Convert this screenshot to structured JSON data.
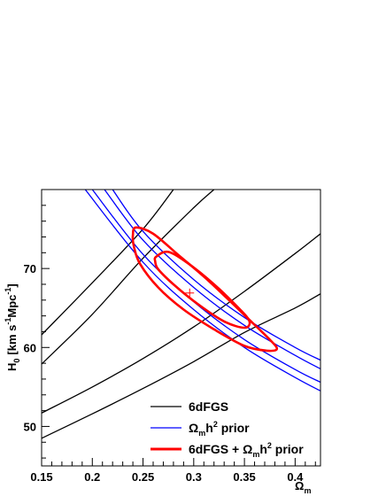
{
  "chart_data": {
    "type": "line",
    "title": "",
    "xlabel": {
      "base": "Ω",
      "sub": "m"
    },
    "ylabel": {
      "base": "H",
      "sub": "0",
      "unit": "[km s",
      "sup1": "-1",
      "unit2": "Mpc",
      "sup2": "-1",
      "close": "]"
    },
    "xlim": [
      0.15,
      0.425
    ],
    "ylim": [
      45,
      80
    ],
    "xticks": [
      "0.15",
      "0.2",
      "0.25",
      "0.3",
      "0.35",
      "0.4"
    ],
    "xtick_values": [
      0.15,
      0.2,
      0.25,
      0.3,
      0.35,
      0.4
    ],
    "yticks": [
      "50",
      "60",
      "70"
    ],
    "ytick_values": [
      50,
      60,
      70
    ],
    "grid": false,
    "legend_position": "bottom-right",
    "legend": [
      {
        "text": "6dFGS",
        "color": "#000000"
      },
      {
        "base": "Ω",
        "sub": "m",
        "rest": "h",
        "sup": "2",
        "tail": " prior",
        "color": "#0000ff"
      },
      {
        "prefix": "6dFGS + ",
        "base": "Ω",
        "sub": "m",
        "rest": "h",
        "sup": "2",
        "tail": " prior",
        "color": "#ff0000"
      }
    ],
    "best_fit": {
      "x": 0.296,
      "y": 66.9,
      "color": "#ff0000"
    },
    "series": [
      {
        "group": "6dFGS",
        "color": "#000000",
        "points": [
          [
            0.15,
            61.6
          ],
          [
            0.2,
            68.2
          ],
          [
            0.25,
            75.0
          ],
          [
            0.28,
            80.0
          ]
        ]
      },
      {
        "group": "6dFGS",
        "color": "#000000",
        "points": [
          [
            0.15,
            57.9
          ],
          [
            0.2,
            64.2
          ],
          [
            0.25,
            71.3
          ],
          [
            0.3,
            77.7
          ],
          [
            0.32,
            80.0
          ]
        ]
      },
      {
        "group": "6dFGS",
        "color": "#000000",
        "points": [
          [
            0.15,
            51.7
          ],
          [
            0.2,
            55.0
          ],
          [
            0.25,
            58.6
          ],
          [
            0.3,
            62.6
          ],
          [
            0.35,
            67.1
          ],
          [
            0.4,
            71.9
          ],
          [
            0.425,
            74.4
          ]
        ]
      },
      {
        "group": "6dFGS",
        "color": "#000000",
        "points": [
          [
            0.15,
            48.5
          ],
          [
            0.2,
            51.6
          ],
          [
            0.25,
            54.8
          ],
          [
            0.3,
            58.2
          ],
          [
            0.35,
            61.9
          ],
          [
            0.4,
            65.0
          ],
          [
            0.425,
            66.8
          ]
        ]
      },
      {
        "group": "prior",
        "color": "#0000ff",
        "points": [
          [
            0.193,
            80.0
          ],
          [
            0.25,
            70.8
          ],
          [
            0.3,
            64.8
          ],
          [
            0.35,
            60.0
          ],
          [
            0.4,
            56.2
          ],
          [
            0.425,
            54.5
          ]
        ]
      },
      {
        "group": "prior",
        "color": "#0000ff",
        "points": [
          [
            0.2,
            80.0
          ],
          [
            0.25,
            71.8
          ],
          [
            0.3,
            65.8
          ],
          [
            0.35,
            61.0
          ],
          [
            0.4,
            57.2
          ],
          [
            0.425,
            55.6
          ]
        ]
      },
      {
        "group": "prior",
        "color": "#0000ff",
        "points": [
          [
            0.212,
            80.0
          ],
          [
            0.25,
            73.6
          ],
          [
            0.3,
            67.6
          ],
          [
            0.35,
            62.8
          ],
          [
            0.4,
            59.0
          ],
          [
            0.425,
            57.3
          ]
        ]
      },
      {
        "group": "prior",
        "color": "#0000ff",
        "points": [
          [
            0.22,
            80.0
          ],
          [
            0.25,
            74.7
          ],
          [
            0.3,
            68.6
          ],
          [
            0.35,
            63.8
          ],
          [
            0.4,
            60.0
          ],
          [
            0.425,
            58.4
          ]
        ]
      }
    ],
    "contours": [
      {
        "level": "1-sigma",
        "color": "#ff0000",
        "points": [
          [
            0.263,
            71.5
          ],
          [
            0.275,
            72.1
          ],
          [
            0.295,
            70.6
          ],
          [
            0.32,
            68.0
          ],
          [
            0.345,
            64.9
          ],
          [
            0.355,
            63.3
          ],
          [
            0.35,
            62.5
          ],
          [
            0.33,
            63.3
          ],
          [
            0.305,
            65.4
          ],
          [
            0.28,
            68.0
          ],
          [
            0.265,
            69.9
          ],
          [
            0.262,
            70.9
          ]
        ]
      },
      {
        "level": "2-sigma",
        "color": "#ff0000",
        "points": [
          [
            0.24,
            74.2
          ],
          [
            0.243,
            75.2
          ],
          [
            0.26,
            74.4
          ],
          [
            0.285,
            71.7
          ],
          [
            0.315,
            68.4
          ],
          [
            0.35,
            64.1
          ],
          [
            0.375,
            61.0
          ],
          [
            0.382,
            59.8
          ],
          [
            0.372,
            59.6
          ],
          [
            0.35,
            60.2
          ],
          [
            0.32,
            62.3
          ],
          [
            0.29,
            64.8
          ],
          [
            0.265,
            67.6
          ],
          [
            0.247,
            70.6
          ],
          [
            0.241,
            72.8
          ]
        ]
      }
    ]
  }
}
